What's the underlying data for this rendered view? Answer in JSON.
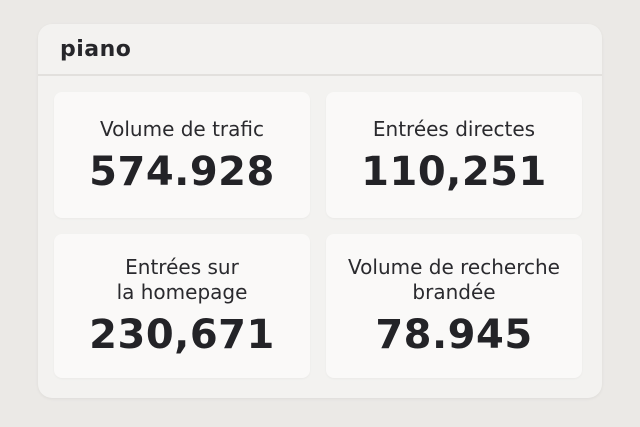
{
  "header": {
    "logo_text": "piano"
  },
  "metrics": [
    {
      "label": "Volume de trafic",
      "value": "574.928"
    },
    {
      "label": "Entrées directes",
      "value": "110,251"
    },
    {
      "label": "Entrées sur\nla homepage",
      "value": "230,671"
    },
    {
      "label": "Volume de recherche\nbrandée",
      "value": "78.945"
    }
  ]
}
